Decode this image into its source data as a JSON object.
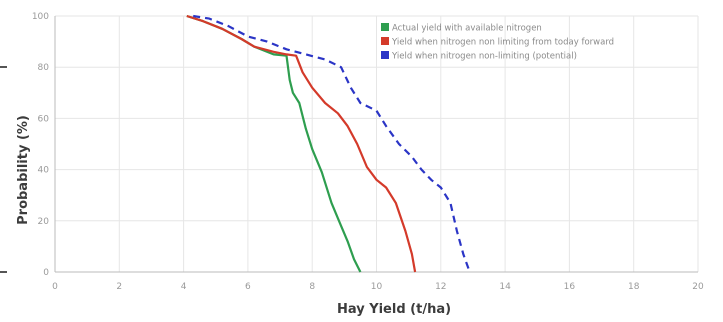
{
  "chart_data": {
    "type": "line",
    "xlabel": "Hay Yield (t/ha)",
    "ylabel": "Probability (%)",
    "xlim": [
      0,
      20
    ],
    "ylim": [
      0,
      100
    ],
    "xticks": [
      0,
      2,
      4,
      6,
      8,
      10,
      12,
      14,
      16,
      18,
      20
    ],
    "yticks": [
      0,
      20,
      40,
      60,
      80,
      100
    ],
    "grid": true,
    "legend_position": "top-right",
    "series": [
      {
        "name": "Actual yield with available nitrogen",
        "color": "#2e9e4f",
        "style": "solid",
        "points": [
          [
            4.1,
            100
          ],
          [
            4.6,
            98
          ],
          [
            5.2,
            95
          ],
          [
            5.8,
            91
          ],
          [
            6.2,
            88
          ],
          [
            6.8,
            85
          ],
          [
            7.2,
            84.5
          ],
          [
            7.3,
            75
          ],
          [
            7.4,
            70
          ],
          [
            7.6,
            66
          ],
          [
            7.8,
            56
          ],
          [
            8.0,
            48
          ],
          [
            8.3,
            39
          ],
          [
            8.6,
            27
          ],
          [
            8.9,
            18
          ],
          [
            9.1,
            12
          ],
          [
            9.3,
            5
          ],
          [
            9.5,
            0
          ]
        ]
      },
      {
        "name": "Yield when nitrogen non limiting from today forward",
        "color": "#d43a2a",
        "style": "solid",
        "points": [
          [
            4.1,
            100
          ],
          [
            4.6,
            98
          ],
          [
            5.2,
            95
          ],
          [
            5.8,
            91
          ],
          [
            6.2,
            88
          ],
          [
            6.8,
            86
          ],
          [
            7.2,
            85
          ],
          [
            7.5,
            84.5
          ],
          [
            7.7,
            78
          ],
          [
            8.0,
            72
          ],
          [
            8.4,
            66
          ],
          [
            8.8,
            62
          ],
          [
            9.1,
            57
          ],
          [
            9.4,
            50
          ],
          [
            9.7,
            41
          ],
          [
            10.0,
            36
          ],
          [
            10.3,
            33
          ],
          [
            10.6,
            27
          ],
          [
            10.9,
            16
          ],
          [
            11.1,
            7
          ],
          [
            11.2,
            0
          ]
        ]
      },
      {
        "name": "Yield when nitrogen non-limiting (potential)",
        "color": "#2b35c6",
        "style": "dashed",
        "points": [
          [
            4.3,
            100
          ],
          [
            4.8,
            99
          ],
          [
            5.4,
            96
          ],
          [
            6.0,
            92
          ],
          [
            6.6,
            90
          ],
          [
            7.2,
            87
          ],
          [
            7.8,
            85
          ],
          [
            8.4,
            83
          ],
          [
            8.9,
            80
          ],
          [
            9.2,
            72
          ],
          [
            9.5,
            66
          ],
          [
            10.0,
            63
          ],
          [
            10.3,
            57
          ],
          [
            10.7,
            50
          ],
          [
            11.1,
            45
          ],
          [
            11.4,
            40
          ],
          [
            11.7,
            36
          ],
          [
            12.0,
            33
          ],
          [
            12.3,
            27
          ],
          [
            12.5,
            16
          ],
          [
            12.7,
            7
          ],
          [
            12.9,
            0
          ]
        ]
      }
    ]
  }
}
